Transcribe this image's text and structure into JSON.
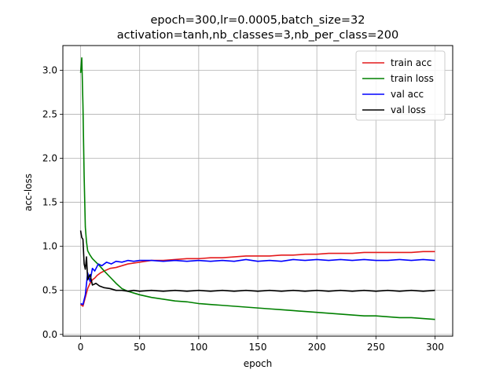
{
  "chart_data": {
    "type": "line",
    "title": [
      "epoch=300,lr=0.0005,batch_size=32",
      "activation=tanh,nb_classes=3,nb_per_class=200"
    ],
    "xlabel": "epoch",
    "ylabel": "acc-loss",
    "xlim": [
      -15,
      315
    ],
    "ylim": [
      -0.02,
      3.28
    ],
    "xticks": [
      0,
      50,
      100,
      150,
      200,
      250,
      300
    ],
    "yticks": [
      0.0,
      0.5,
      1.0,
      1.5,
      2.0,
      2.5,
      3.0
    ],
    "ytick_labels": [
      "0.0",
      "0.5",
      "1.0",
      "1.5",
      "2.0",
      "2.5",
      "3.0"
    ],
    "grid": true,
    "legend_position": "top-right",
    "series": [
      {
        "name": "train acc",
        "color": "#e41a1c",
        "points": [
          [
            0,
            0.34
          ],
          [
            2,
            0.32
          ],
          [
            4,
            0.42
          ],
          [
            6,
            0.52
          ],
          [
            8,
            0.58
          ],
          [
            10,
            0.62
          ],
          [
            12,
            0.64
          ],
          [
            14,
            0.67
          ],
          [
            17,
            0.7
          ],
          [
            20,
            0.72
          ],
          [
            25,
            0.75
          ],
          [
            30,
            0.76
          ],
          [
            35,
            0.78
          ],
          [
            40,
            0.8
          ],
          [
            45,
            0.81
          ],
          [
            50,
            0.82
          ],
          [
            55,
            0.83
          ],
          [
            60,
            0.84
          ],
          [
            70,
            0.84
          ],
          [
            80,
            0.85
          ],
          [
            90,
            0.86
          ],
          [
            100,
            0.86
          ],
          [
            110,
            0.87
          ],
          [
            120,
            0.87
          ],
          [
            130,
            0.88
          ],
          [
            140,
            0.89
          ],
          [
            150,
            0.89
          ],
          [
            160,
            0.89
          ],
          [
            170,
            0.9
          ],
          [
            180,
            0.9
          ],
          [
            190,
            0.91
          ],
          [
            200,
            0.91
          ],
          [
            210,
            0.92
          ],
          [
            220,
            0.92
          ],
          [
            230,
            0.92
          ],
          [
            240,
            0.93
          ],
          [
            250,
            0.93
          ],
          [
            260,
            0.93
          ],
          [
            270,
            0.93
          ],
          [
            280,
            0.93
          ],
          [
            290,
            0.94
          ],
          [
            300,
            0.94
          ]
        ]
      },
      {
        "name": "train loss",
        "color": "#008000",
        "points": [
          [
            0,
            2.97
          ],
          [
            1,
            3.14
          ],
          [
            2,
            2.6
          ],
          [
            3,
            1.8
          ],
          [
            4,
            1.22
          ],
          [
            5,
            1.05
          ],
          [
            6,
            0.95
          ],
          [
            8,
            0.9
          ],
          [
            10,
            0.86
          ],
          [
            13,
            0.82
          ],
          [
            16,
            0.78
          ],
          [
            20,
            0.72
          ],
          [
            25,
            0.65
          ],
          [
            30,
            0.58
          ],
          [
            35,
            0.52
          ],
          [
            40,
            0.49
          ],
          [
            45,
            0.47
          ],
          [
            50,
            0.45
          ],
          [
            60,
            0.42
          ],
          [
            70,
            0.4
          ],
          [
            80,
            0.38
          ],
          [
            90,
            0.37
          ],
          [
            100,
            0.35
          ],
          [
            110,
            0.34
          ],
          [
            120,
            0.33
          ],
          [
            130,
            0.32
          ],
          [
            140,
            0.31
          ],
          [
            150,
            0.3
          ],
          [
            160,
            0.29
          ],
          [
            170,
            0.28
          ],
          [
            180,
            0.27
          ],
          [
            190,
            0.26
          ],
          [
            200,
            0.25
          ],
          [
            210,
            0.24
          ],
          [
            220,
            0.23
          ],
          [
            230,
            0.22
          ],
          [
            240,
            0.21
          ],
          [
            250,
            0.21
          ],
          [
            260,
            0.2
          ],
          [
            270,
            0.19
          ],
          [
            280,
            0.19
          ],
          [
            290,
            0.18
          ],
          [
            300,
            0.17
          ]
        ]
      },
      {
        "name": "val acc",
        "color": "#0000ff",
        "points": [
          [
            0,
            0.35
          ],
          [
            2,
            0.34
          ],
          [
            4,
            0.45
          ],
          [
            6,
            0.7
          ],
          [
            8,
            0.6
          ],
          [
            10,
            0.75
          ],
          [
            12,
            0.72
          ],
          [
            15,
            0.8
          ],
          [
            18,
            0.78
          ],
          [
            22,
            0.82
          ],
          [
            26,
            0.8
          ],
          [
            30,
            0.83
          ],
          [
            35,
            0.82
          ],
          [
            40,
            0.84
          ],
          [
            45,
            0.83
          ],
          [
            50,
            0.84
          ],
          [
            60,
            0.84
          ],
          [
            70,
            0.83
          ],
          [
            80,
            0.84
          ],
          [
            90,
            0.83
          ],
          [
            100,
            0.84
          ],
          [
            110,
            0.83
          ],
          [
            120,
            0.84
          ],
          [
            130,
            0.83
          ],
          [
            140,
            0.85
          ],
          [
            150,
            0.83
          ],
          [
            160,
            0.84
          ],
          [
            170,
            0.83
          ],
          [
            180,
            0.85
          ],
          [
            190,
            0.84
          ],
          [
            200,
            0.85
          ],
          [
            210,
            0.84
          ],
          [
            220,
            0.85
          ],
          [
            230,
            0.84
          ],
          [
            240,
            0.85
          ],
          [
            250,
            0.84
          ],
          [
            260,
            0.84
          ],
          [
            270,
            0.85
          ],
          [
            280,
            0.84
          ],
          [
            290,
            0.85
          ],
          [
            300,
            0.84
          ]
        ]
      },
      {
        "name": "val loss",
        "color": "#000000",
        "points": [
          [
            0,
            1.18
          ],
          [
            1,
            1.1
          ],
          [
            2,
            1.08
          ],
          [
            3,
            0.8
          ],
          [
            4,
            0.74
          ],
          [
            5,
            0.88
          ],
          [
            6,
            0.62
          ],
          [
            8,
            0.68
          ],
          [
            10,
            0.56
          ],
          [
            13,
            0.58
          ],
          [
            16,
            0.55
          ],
          [
            20,
            0.53
          ],
          [
            25,
            0.52
          ],
          [
            30,
            0.5
          ],
          [
            35,
            0.5
          ],
          [
            40,
            0.49
          ],
          [
            45,
            0.5
          ],
          [
            50,
            0.49
          ],
          [
            60,
            0.5
          ],
          [
            70,
            0.49
          ],
          [
            80,
            0.5
          ],
          [
            90,
            0.49
          ],
          [
            100,
            0.5
          ],
          [
            110,
            0.49
          ],
          [
            120,
            0.5
          ],
          [
            130,
            0.49
          ],
          [
            140,
            0.5
          ],
          [
            150,
            0.49
          ],
          [
            160,
            0.5
          ],
          [
            170,
            0.49
          ],
          [
            180,
            0.5
          ],
          [
            190,
            0.49
          ],
          [
            200,
            0.5
          ],
          [
            210,
            0.49
          ],
          [
            220,
            0.5
          ],
          [
            230,
            0.49
          ],
          [
            240,
            0.5
          ],
          [
            250,
            0.49
          ],
          [
            260,
            0.5
          ],
          [
            270,
            0.49
          ],
          [
            280,
            0.5
          ],
          [
            290,
            0.49
          ],
          [
            300,
            0.5
          ]
        ]
      }
    ]
  }
}
